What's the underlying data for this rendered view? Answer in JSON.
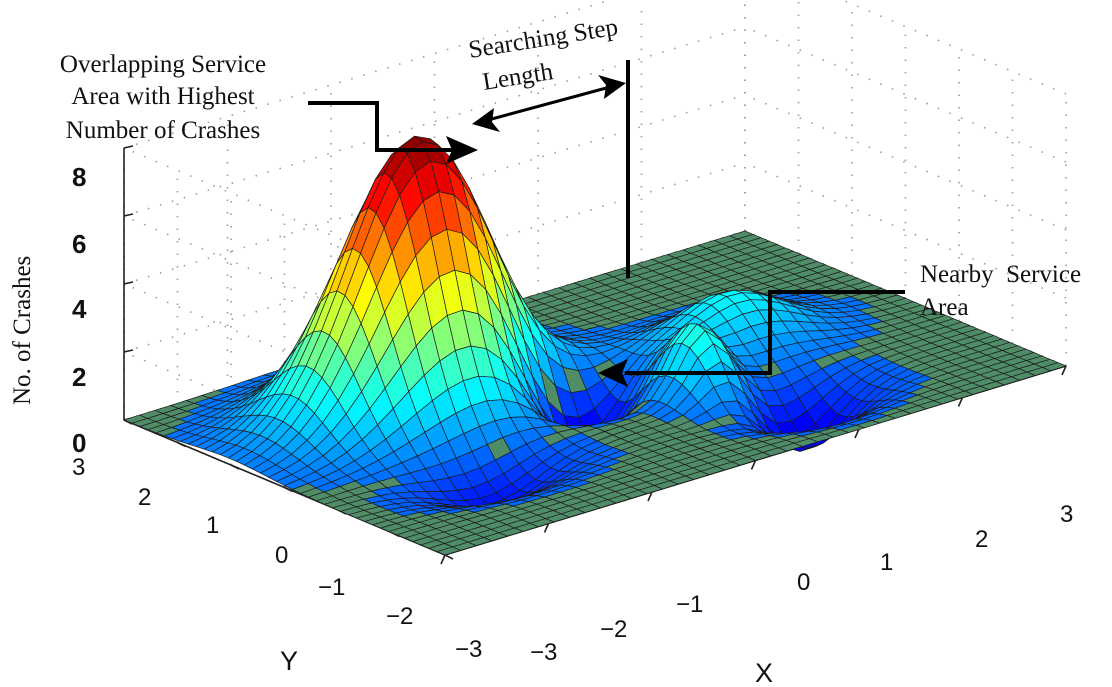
{
  "chart_data": {
    "type": "surface",
    "zlabel": "No. of Crashes",
    "xlabel": "X",
    "ylabel": "Y",
    "xlim": [
      -3,
      3
    ],
    "ylim": [
      -3,
      3
    ],
    "zlim": [
      0,
      8
    ],
    "x_ticks": [
      "−3",
      "−2",
      "−1",
      "0",
      "1",
      "2",
      "3"
    ],
    "y_ticks": [
      "−3",
      "−2",
      "−1",
      "0",
      "1",
      "2",
      "3"
    ],
    "z_ticks": [
      "0",
      "2",
      "4",
      "6",
      "8"
    ],
    "grid": true,
    "colormap": "jet",
    "peaks": [
      {
        "x": -1.2,
        "y": 1.0,
        "z": 8.0
      },
      {
        "x": 0.6,
        "y": -0.8,
        "z": 2.0
      }
    ],
    "annotations": [
      {
        "id": "highest",
        "text": [
          "Overlapping Service",
          "Area with Highest",
          "Number of Crashes"
        ]
      },
      {
        "id": "step",
        "text": [
          "Searching Step",
          "Length"
        ]
      },
      {
        "id": "nearby",
        "text": [
          "Nearby  Service",
          "Area"
        ]
      }
    ]
  }
}
